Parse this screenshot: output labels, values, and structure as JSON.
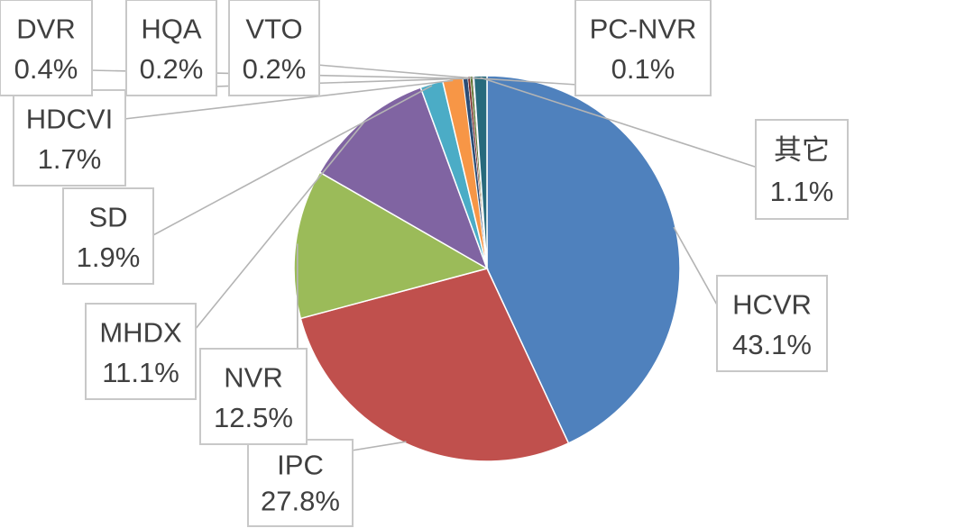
{
  "chart_data": {
    "type": "pie",
    "start_angle_deg": 0,
    "direction": "clockwise",
    "slices": [
      {
        "name": "HCVR",
        "value": 43.1,
        "label": "43.1%",
        "color": "#4f81bd"
      },
      {
        "name": "IPC",
        "value": 27.8,
        "label": "27.8%",
        "color": "#c0504d"
      },
      {
        "name": "NVR",
        "value": 12.5,
        "label": "12.5%",
        "color": "#9bbb59"
      },
      {
        "name": "MHDX",
        "value": 11.1,
        "label": "11.1%",
        "color": "#8064a2"
      },
      {
        "name": "SD",
        "value": 1.9,
        "label": "1.9%",
        "color": "#4bacc6"
      },
      {
        "name": "HDCVI",
        "value": 1.7,
        "label": "1.7%",
        "color": "#f79646"
      },
      {
        "name": "DVR",
        "value": 0.4,
        "label": "0.4%",
        "color": "#2c4d75"
      },
      {
        "name": "HQA",
        "value": 0.2,
        "label": "0.2%",
        "color": "#772c2a"
      },
      {
        "name": "VTO",
        "value": 0.2,
        "label": "0.2%",
        "color": "#5f7530"
      },
      {
        "name": "PC-NVR",
        "value": 0.1,
        "label": "0.1%",
        "color": "#4d3b62"
      },
      {
        "name": "其它",
        "value": 1.1,
        "label": "1.1%",
        "color": "#276a7c"
      }
    ],
    "legend": "none"
  }
}
